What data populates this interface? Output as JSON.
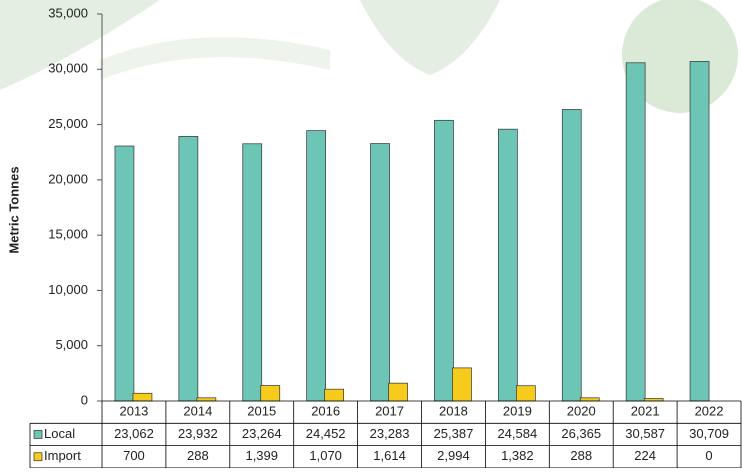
{
  "chart_data": {
    "type": "bar",
    "y_label": "Metric Tonnes",
    "categories": [
      "2013",
      "2014",
      "2015",
      "2016",
      "2017",
      "2018",
      "2019",
      "2020",
      "2021",
      "2022"
    ],
    "series": [
      {
        "name": "Local",
        "color": "#6cc5b5",
        "values": [
          23062,
          23932,
          23264,
          24452,
          23283,
          25387,
          24584,
          26365,
          30587,
          30709
        ],
        "value_labels": [
          "23,062",
          "23,932",
          "23,264",
          "24,452",
          "23,283",
          "25,387",
          "24,584",
          "26,365",
          "30,587",
          "30,709"
        ]
      },
      {
        "name": "Import",
        "color": "#f7cb1c",
        "values": [
          700,
          288,
          1399,
          1070,
          1614,
          2994,
          1382,
          288,
          224,
          0
        ],
        "value_labels": [
          "700",
          "288",
          "1,399",
          "1,070",
          "1,614",
          "2,994",
          "1,382",
          "288",
          "224",
          "0"
        ]
      }
    ],
    "ylim": [
      0,
      35000
    ],
    "yticks": [
      0,
      {
        "value": 5000,
        "label": "5,000"
      },
      {
        "value": 10000,
        "label": "10,000"
      },
      {
        "value": 15000,
        "label": "15,000"
      },
      {
        "value": 20000,
        "label": "20,000"
      },
      {
        "value": 25000,
        "label": "25,000"
      },
      {
        "value": 30000,
        "label": "30,000"
      },
      {
        "value": 35000,
        "label": "35,000"
      }
    ],
    "grid": false
  }
}
